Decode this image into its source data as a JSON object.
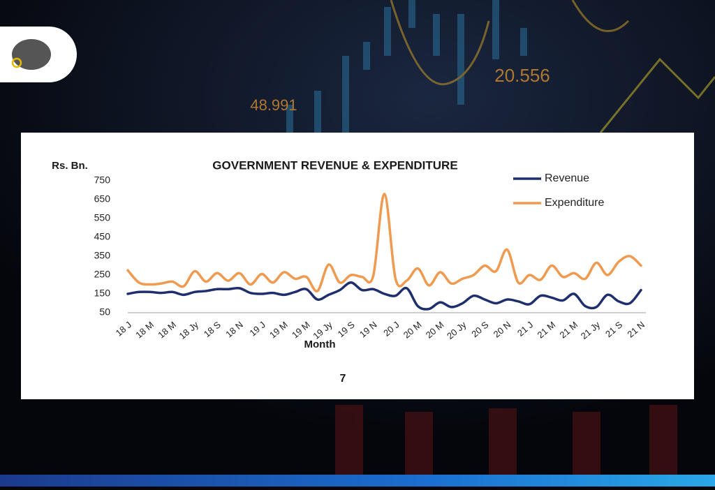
{
  "background": {
    "labels": [
      "48.991",
      "20.556"
    ]
  },
  "slide": {
    "page_number": "7"
  },
  "chart_data": {
    "type": "line",
    "title": "GOVERNMENT REVENUE & EXPENDITURE",
    "y_label": "Rs. Bn.",
    "x_label": "Month",
    "categories": [
      "18 J",
      null,
      "18 M",
      null,
      "18 M",
      null,
      "18 Jy",
      null,
      "18 S",
      null,
      "18 N",
      null,
      "19 J",
      null,
      "19 M",
      null,
      "19 M",
      null,
      "19 Jy",
      null,
      "19 S",
      null,
      "19 N",
      null,
      "20 J",
      null,
      "20 M",
      null,
      "20 M",
      null,
      "20 Jy",
      null,
      "20 S",
      null,
      "20 N",
      null,
      "21 J",
      null,
      "21 M",
      null,
      "21 M",
      null,
      "21 Jy",
      null,
      "21 S",
      null,
      "21 N"
    ],
    "series": [
      {
        "name": "Revenue",
        "color": "#1f2f6e",
        "values": [
          150,
          160,
          160,
          155,
          160,
          145,
          160,
          165,
          175,
          175,
          180,
          155,
          150,
          155,
          145,
          160,
          175,
          120,
          145,
          170,
          210,
          170,
          175,
          150,
          140,
          180,
          85,
          70,
          105,
          80,
          100,
          140,
          120,
          100,
          120,
          110,
          95,
          140,
          130,
          115,
          150,
          85,
          80,
          145,
          110,
          100,
          170
        ]
      },
      {
        "name": "Expenditure",
        "color": "#ef9a4f",
        "values": [
          275,
          210,
          200,
          205,
          215,
          190,
          270,
          215,
          260,
          220,
          260,
          200,
          255,
          210,
          265,
          230,
          240,
          165,
          305,
          210,
          250,
          240,
          245,
          680,
          230,
          220,
          285,
          195,
          265,
          205,
          230,
          250,
          300,
          270,
          385,
          210,
          250,
          225,
          300,
          240,
          260,
          230,
          315,
          250,
          320,
          350,
          300
        ]
      }
    ],
    "ylim": [
      50,
      750
    ],
    "yticks": [
      50,
      150,
      250,
      350,
      450,
      550,
      650,
      750
    ],
    "grid": false,
    "legend": "top-right"
  }
}
